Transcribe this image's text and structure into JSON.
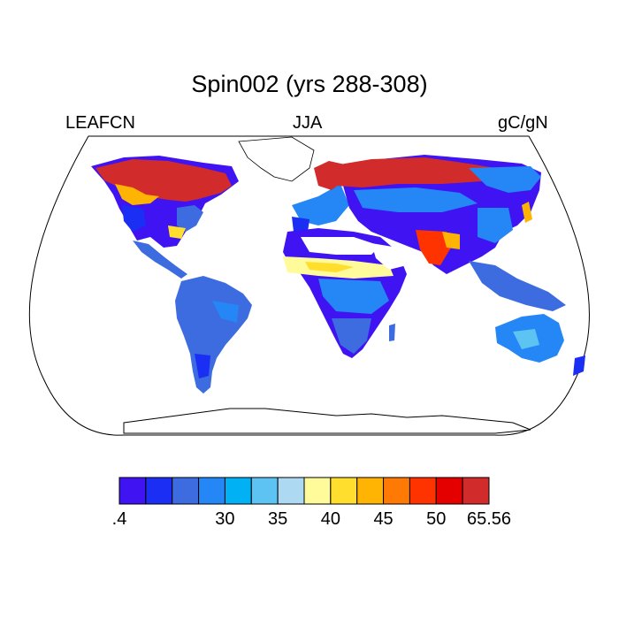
{
  "title": "Spin002 (yrs 288-308)",
  "subtitles": {
    "left": "LEAFCN",
    "center": "JJA",
    "right": "gC/gN"
  },
  "colorbar": {
    "colors": [
      "#3f13f2",
      "#1b2ef4",
      "#3d6ce0",
      "#2586f5",
      "#00b1f4",
      "#5cc3f3",
      "#aed9f3",
      "#fffa9a",
      "#ffde2e",
      "#ffb302",
      "#ff7a05",
      "#ff3300",
      "#e50000",
      "#d12b2b"
    ],
    "labels": [
      ".4",
      "30",
      "35",
      "40",
      "45",
      "50",
      "65.56"
    ],
    "label_boundaries": [
      0,
      4,
      6,
      8,
      10,
      12,
      14
    ]
  },
  "map": {
    "projection": "Robinson",
    "variable": "LEAFCN",
    "season": "JJA",
    "units": "gC/gN"
  }
}
